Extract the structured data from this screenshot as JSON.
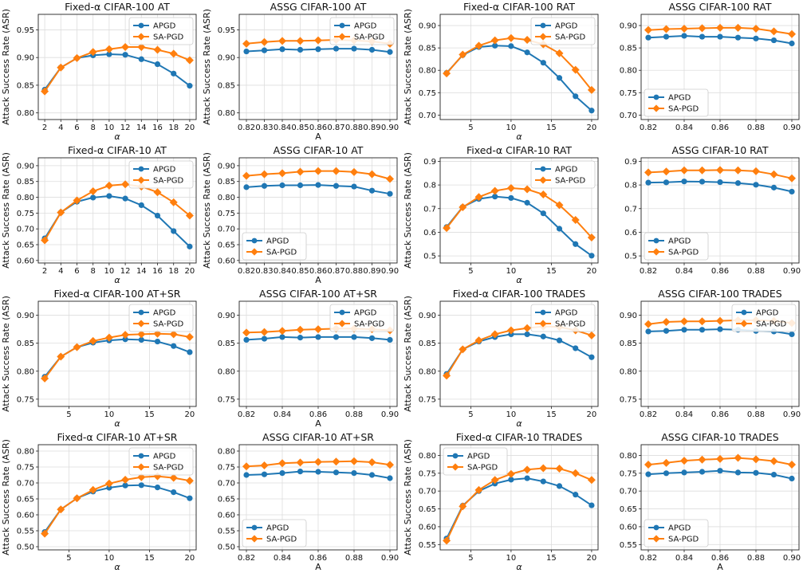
{
  "colors": {
    "apgd": "#1f77b4",
    "sapgd": "#ff7f0e",
    "grid": "#dddddd",
    "axis": "#222222"
  },
  "chart_data": [
    {
      "type": "line",
      "title": "Fixed-α  CIFAR-100  AT",
      "xlabel": "α",
      "ylabel": "Attack Success Rate (ASR)",
      "x": [
        2,
        4,
        6,
        8,
        10,
        12,
        14,
        16,
        18,
        20
      ],
      "xticks": [
        "2",
        "4",
        "6",
        "8",
        "10",
        "12",
        "14",
        "16",
        "18",
        "20"
      ],
      "xlim": [
        1.2,
        20.8
      ],
      "yticks": [
        "0.80",
        "0.85",
        "0.90",
        "0.95"
      ],
      "ylim": [
        0.788,
        0.978
      ],
      "legend": "upper-right",
      "series": [
        {
          "name": "APGD",
          "values": [
            0.842,
            0.882,
            0.899,
            0.904,
            0.906,
            0.905,
            0.897,
            0.888,
            0.871,
            0.849
          ]
        },
        {
          "name": "SA-PGD",
          "values": [
            0.839,
            0.882,
            0.899,
            0.91,
            0.915,
            0.919,
            0.919,
            0.914,
            0.907,
            0.895
          ]
        }
      ]
    },
    {
      "type": "line",
      "title": "ASSG  CIFAR-100  AT",
      "xlabel": "A",
      "ylabel": "Attack Success Rate (ASR)",
      "x": [
        0.82,
        0.83,
        0.84,
        0.85,
        0.86,
        0.87,
        0.88,
        0.89,
        0.9
      ],
      "xticks": [
        "0.82",
        "0.83",
        "0.84",
        "0.85",
        "0.86",
        "0.87",
        "0.88",
        "0.89",
        "0.90"
      ],
      "xlim": [
        0.816,
        0.904
      ],
      "yticks": [
        "0.80",
        "0.85",
        "0.90",
        "0.95"
      ],
      "ylim": [
        0.788,
        0.978
      ],
      "legend": "upper-right",
      "series": [
        {
          "name": "APGD",
          "values": [
            0.911,
            0.913,
            0.915,
            0.914,
            0.915,
            0.916,
            0.916,
            0.914,
            0.91
          ]
        },
        {
          "name": "SA-PGD",
          "values": [
            0.925,
            0.928,
            0.93,
            0.93,
            0.931,
            0.932,
            0.931,
            0.929,
            0.925
          ]
        }
      ]
    },
    {
      "type": "line",
      "title": "Fixed-α  CIFAR-100  RAT",
      "xlabel": "α",
      "ylabel": "Attack Success Rate (ASR)",
      "x": [
        2,
        4,
        6,
        8,
        10,
        12,
        14,
        16,
        18,
        20
      ],
      "xticks": [
        "5",
        "10",
        "15",
        "20"
      ],
      "xlim": [
        1.2,
        20.8
      ],
      "yticks": [
        "0.70",
        "0.75",
        "0.80",
        "0.85",
        "0.90"
      ],
      "ylim": [
        0.69,
        0.925
      ],
      "legend": "upper-right",
      "series": [
        {
          "name": "APGD",
          "values": [
            0.794,
            0.834,
            0.852,
            0.855,
            0.854,
            0.84,
            0.817,
            0.783,
            0.742,
            0.71
          ]
        },
        {
          "name": "SA-PGD",
          "values": [
            0.793,
            0.835,
            0.855,
            0.867,
            0.872,
            0.868,
            0.858,
            0.838,
            0.801,
            0.756
          ]
        }
      ]
    },
    {
      "type": "line",
      "title": "ASSG  CIFAR-100  RAT",
      "xlabel": "",
      "ylabel": "",
      "x": [
        0.82,
        0.83,
        0.84,
        0.85,
        0.86,
        0.87,
        0.88,
        0.89,
        0.9
      ],
      "xticks": [
        "0.82",
        "0.84",
        "0.86",
        "0.88",
        "0.90"
      ],
      "xlim": [
        0.816,
        0.904
      ],
      "yticks": [
        "0.70",
        "0.75",
        "0.80",
        "0.85",
        "0.90"
      ],
      "ylim": [
        0.69,
        0.925
      ],
      "legend": "lower-left",
      "series": [
        {
          "name": "APGD",
          "values": [
            0.873,
            0.875,
            0.877,
            0.875,
            0.875,
            0.873,
            0.871,
            0.867,
            0.86
          ]
        },
        {
          "name": "SA-PGD",
          "values": [
            0.89,
            0.892,
            0.893,
            0.894,
            0.895,
            0.895,
            0.893,
            0.887,
            0.881
          ]
        }
      ]
    },
    {
      "type": "line",
      "title": "Fixed-α  CIFAR-10  AT",
      "xlabel": "α",
      "ylabel": "Attack Success Rate (ASR)",
      "x": [
        2,
        4,
        6,
        8,
        10,
        12,
        14,
        16,
        18,
        20
      ],
      "xticks": [
        "2",
        "4",
        "6",
        "8",
        "10",
        "12",
        "14",
        "16",
        "18",
        "20"
      ],
      "xlim": [
        1.2,
        20.8
      ],
      "yticks": [
        "0.60",
        "0.65",
        "0.70",
        "0.75",
        "0.80",
        "0.85",
        "0.90"
      ],
      "ylim": [
        0.592,
        0.925
      ],
      "legend": "upper-right",
      "series": [
        {
          "name": "APGD",
          "values": [
            0.67,
            0.752,
            0.786,
            0.799,
            0.804,
            0.796,
            0.775,
            0.742,
            0.693,
            0.644
          ]
        },
        {
          "name": "SA-PGD",
          "values": [
            0.664,
            0.752,
            0.79,
            0.819,
            0.837,
            0.841,
            0.834,
            0.816,
            0.784,
            0.742
          ]
        }
      ]
    },
    {
      "type": "line",
      "title": "ASSG  CIFAR-10  AT",
      "xlabel": "A",
      "ylabel": "Attack Success Rate (ASR)",
      "x": [
        0.82,
        0.83,
        0.84,
        0.85,
        0.86,
        0.87,
        0.88,
        0.89,
        0.9
      ],
      "xticks": [
        "0.82",
        "0.83",
        "0.84",
        "0.85",
        "0.86",
        "0.87",
        "0.88",
        "0.89",
        "0.90"
      ],
      "xlim": [
        0.816,
        0.904
      ],
      "yticks": [
        "0.60",
        "0.65",
        "0.70",
        "0.75",
        "0.80",
        "0.85",
        "0.90"
      ],
      "ylim": [
        0.592,
        0.925
      ],
      "legend": "lower-left",
      "series": [
        {
          "name": "APGD",
          "values": [
            0.832,
            0.836,
            0.838,
            0.838,
            0.839,
            0.836,
            0.834,
            0.821,
            0.811
          ]
        },
        {
          "name": "SA-PGD",
          "values": [
            0.868,
            0.873,
            0.876,
            0.881,
            0.883,
            0.883,
            0.88,
            0.873,
            0.858
          ]
        }
      ]
    },
    {
      "type": "line",
      "title": "Fixed-α  CIFAR-10  RAT",
      "xlabel": "α",
      "ylabel": "Attack Success Rate (ASR)",
      "x": [
        2,
        4,
        6,
        8,
        10,
        12,
        14,
        16,
        18,
        20
      ],
      "xticks": [
        "5",
        "10",
        "15",
        "20"
      ],
      "xlim": [
        1.2,
        20.8
      ],
      "yticks": [
        "0.5",
        "0.6",
        "0.7",
        "0.8",
        "0.9"
      ],
      "ylim": [
        0.47,
        0.915
      ],
      "legend": "upper-right",
      "series": [
        {
          "name": "APGD",
          "values": [
            0.622,
            0.707,
            0.741,
            0.751,
            0.745,
            0.725,
            0.68,
            0.615,
            0.55,
            0.501
          ]
        },
        {
          "name": "SA-PGD",
          "values": [
            0.618,
            0.706,
            0.749,
            0.775,
            0.787,
            0.782,
            0.76,
            0.715,
            0.652,
            0.578
          ]
        }
      ]
    },
    {
      "type": "line",
      "title": "ASSG  CIFAR-10  RAT",
      "xlabel": "",
      "ylabel": "",
      "x": [
        0.82,
        0.83,
        0.84,
        0.85,
        0.86,
        0.87,
        0.88,
        0.89,
        0.9
      ],
      "xticks": [
        "0.82",
        "0.84",
        "0.86",
        "0.88",
        "0.90"
      ],
      "xlim": [
        0.816,
        0.904
      ],
      "yticks": [
        "0.5",
        "0.6",
        "0.7",
        "0.8",
        "0.9"
      ],
      "ylim": [
        0.47,
        0.915
      ],
      "legend": "lower-left",
      "series": [
        {
          "name": "APGD",
          "values": [
            0.81,
            0.811,
            0.815,
            0.814,
            0.812,
            0.808,
            0.801,
            0.789,
            0.772
          ]
        },
        {
          "name": "SA-PGD",
          "values": [
            0.853,
            0.857,
            0.862,
            0.862,
            0.863,
            0.862,
            0.858,
            0.845,
            0.828
          ]
        }
      ]
    },
    {
      "type": "line",
      "title": "Fixed-α  CIFAR-100  AT+SR",
      "xlabel": "α",
      "ylabel": "Attack Success Rate (ASR)",
      "x": [
        2,
        4,
        6,
        8,
        10,
        12,
        14,
        16,
        18,
        20
      ],
      "xticks": [
        "5",
        "10",
        "15",
        "20"
      ],
      "xlim": [
        1.2,
        20.8
      ],
      "yticks": [
        "0.75",
        "0.80",
        "0.85",
        "0.90"
      ],
      "ylim": [
        0.737,
        0.925
      ],
      "legend": "upper-right",
      "series": [
        {
          "name": "APGD",
          "values": [
            0.79,
            0.826,
            0.843,
            0.851,
            0.855,
            0.857,
            0.856,
            0.853,
            0.845,
            0.834
          ]
        },
        {
          "name": "SA-PGD",
          "values": [
            0.787,
            0.826,
            0.843,
            0.854,
            0.86,
            0.865,
            0.866,
            0.867,
            0.866,
            0.861
          ]
        }
      ]
    },
    {
      "type": "line",
      "title": "ASSG  CIFAR-100  AT+SR",
      "xlabel": "A",
      "ylabel": "",
      "x": [
        0.82,
        0.83,
        0.84,
        0.85,
        0.86,
        0.87,
        0.88,
        0.89,
        0.9
      ],
      "xticks": [
        "0.82",
        "0.84",
        "0.86",
        "0.88",
        "0.90"
      ],
      "xlim": [
        0.816,
        0.904
      ],
      "yticks": [
        "0.75",
        "0.80",
        "0.85",
        "0.90"
      ],
      "ylim": [
        0.737,
        0.925
      ],
      "legend": "upper-right",
      "series": [
        {
          "name": "APGD",
          "values": [
            0.856,
            0.858,
            0.861,
            0.86,
            0.861,
            0.861,
            0.861,
            0.859,
            0.856
          ]
        },
        {
          "name": "SA-PGD",
          "values": [
            0.869,
            0.87,
            0.872,
            0.874,
            0.875,
            0.876,
            0.876,
            0.875,
            0.873
          ]
        }
      ]
    },
    {
      "type": "line",
      "title": "Fixed-α  CIFAR-100  TRADES",
      "xlabel": "α",
      "ylabel": "Attack Success Rate (ASR)",
      "x": [
        2,
        4,
        6,
        8,
        10,
        12,
        14,
        16,
        18,
        20
      ],
      "xticks": [
        "5",
        "10",
        "15",
        "20"
      ],
      "xlim": [
        1.2,
        20.8
      ],
      "yticks": [
        "0.75",
        "0.80",
        "0.85",
        "0.90"
      ],
      "ylim": [
        0.737,
        0.925
      ],
      "legend": "upper-right",
      "series": [
        {
          "name": "APGD",
          "values": [
            0.795,
            0.839,
            0.853,
            0.861,
            0.866,
            0.866,
            0.862,
            0.855,
            0.841,
            0.825
          ]
        },
        {
          "name": "SA-PGD",
          "values": [
            0.792,
            0.839,
            0.855,
            0.866,
            0.873,
            0.877,
            0.88,
            0.879,
            0.873,
            0.864
          ]
        }
      ]
    },
    {
      "type": "line",
      "title": "ASSG  CIFAR-100  TRADES",
      "xlabel": "",
      "ylabel": "",
      "x": [
        0.82,
        0.83,
        0.84,
        0.85,
        0.86,
        0.87,
        0.88,
        0.89,
        0.9
      ],
      "xticks": [
        "0.82",
        "0.84",
        "0.86",
        "0.88",
        "0.90"
      ],
      "xlim": [
        0.816,
        0.904
      ],
      "yticks": [
        "0.75",
        "0.80",
        "0.85",
        "0.90"
      ],
      "ylim": [
        0.737,
        0.925
      ],
      "legend": "upper-right",
      "series": [
        {
          "name": "APGD",
          "values": [
            0.871,
            0.872,
            0.874,
            0.874,
            0.875,
            0.874,
            0.872,
            0.871,
            0.866
          ]
        },
        {
          "name": "SA-PGD",
          "values": [
            0.884,
            0.888,
            0.889,
            0.889,
            0.89,
            0.891,
            0.891,
            0.89,
            0.886
          ]
        }
      ]
    },
    {
      "type": "line",
      "title": "Fixed-α  CIFAR-10  AT+SR",
      "xlabel": "α",
      "ylabel": "Attack Success Rate (ASR)",
      "x": [
        2,
        4,
        6,
        8,
        10,
        12,
        14,
        16,
        18,
        20
      ],
      "xticks": [
        "5",
        "10",
        "15",
        "20"
      ],
      "xlim": [
        1.2,
        20.8
      ],
      "yticks": [
        "0.50",
        "0.55",
        "0.60",
        "0.65",
        "0.70",
        "0.75",
        "0.80"
      ],
      "ylim": [
        0.49,
        0.82
      ],
      "legend": "upper-right",
      "series": [
        {
          "name": "APGD",
          "values": [
            0.546,
            0.617,
            0.652,
            0.673,
            0.685,
            0.692,
            0.693,
            0.686,
            0.671,
            0.652
          ]
        },
        {
          "name": "SA-PGD",
          "values": [
            0.541,
            0.617,
            0.652,
            0.678,
            0.698,
            0.71,
            0.718,
            0.721,
            0.716,
            0.707
          ]
        }
      ]
    },
    {
      "type": "line",
      "title": "ASSG  CIFAR-10  AT+SR",
      "xlabel": "A",
      "ylabel": "",
      "x": [
        0.82,
        0.83,
        0.84,
        0.85,
        0.86,
        0.87,
        0.88,
        0.89,
        0.9
      ],
      "xticks": [
        "0.82",
        "0.84",
        "0.86",
        "0.88",
        "0.90"
      ],
      "xlim": [
        0.816,
        0.904
      ],
      "yticks": [
        "0.50",
        "0.55",
        "0.60",
        "0.65",
        "0.70",
        "0.75",
        "0.80"
      ],
      "ylim": [
        0.49,
        0.82
      ],
      "legend": "lower-left",
      "series": [
        {
          "name": "APGD",
          "values": [
            0.725,
            0.727,
            0.731,
            0.736,
            0.735,
            0.733,
            0.731,
            0.725,
            0.715
          ]
        },
        {
          "name": "SA-PGD",
          "values": [
            0.752,
            0.755,
            0.762,
            0.764,
            0.766,
            0.767,
            0.768,
            0.765,
            0.757
          ]
        }
      ]
    },
    {
      "type": "line",
      "title": "Fixed-α  CIFAR-10  TRADES",
      "xlabel": "α",
      "ylabel": "Attack Success Rate (ASR)",
      "x": [
        2,
        4,
        6,
        8,
        10,
        12,
        14,
        16,
        18,
        20
      ],
      "xticks": [
        "5",
        "10",
        "15",
        "20"
      ],
      "xlim": [
        1.2,
        20.8
      ],
      "yticks": [
        "0.55",
        "0.60",
        "0.65",
        "0.70",
        "0.75",
        "0.80"
      ],
      "ylim": [
        0.535,
        0.83
      ],
      "legend": "upper-left",
      "series": [
        {
          "name": "APGD",
          "values": [
            0.567,
            0.659,
            0.7,
            0.721,
            0.732,
            0.736,
            0.727,
            0.714,
            0.69,
            0.66
          ]
        },
        {
          "name": "SA-PGD",
          "values": [
            0.561,
            0.657,
            0.703,
            0.731,
            0.748,
            0.76,
            0.764,
            0.763,
            0.75,
            0.731
          ]
        }
      ]
    },
    {
      "type": "line",
      "title": "ASSG  CIFAR-10  TRADES",
      "xlabel": "A",
      "ylabel": "",
      "x": [
        0.82,
        0.83,
        0.84,
        0.85,
        0.86,
        0.87,
        0.88,
        0.89,
        0.9
      ],
      "xticks": [
        "0.82",
        "0.84",
        "0.86",
        "0.88",
        "0.90"
      ],
      "xlim": [
        0.816,
        0.904
      ],
      "yticks": [
        "0.55",
        "0.60",
        "0.65",
        "0.70",
        "0.75",
        "0.80"
      ],
      "ylim": [
        0.535,
        0.83
      ],
      "legend": "lower-left",
      "series": [
        {
          "name": "APGD",
          "values": [
            0.747,
            0.75,
            0.752,
            0.754,
            0.757,
            0.752,
            0.751,
            0.746,
            0.735
          ]
        },
        {
          "name": "SA-PGD",
          "values": [
            0.774,
            0.779,
            0.785,
            0.788,
            0.79,
            0.793,
            0.789,
            0.784,
            0.774
          ]
        }
      ]
    }
  ]
}
